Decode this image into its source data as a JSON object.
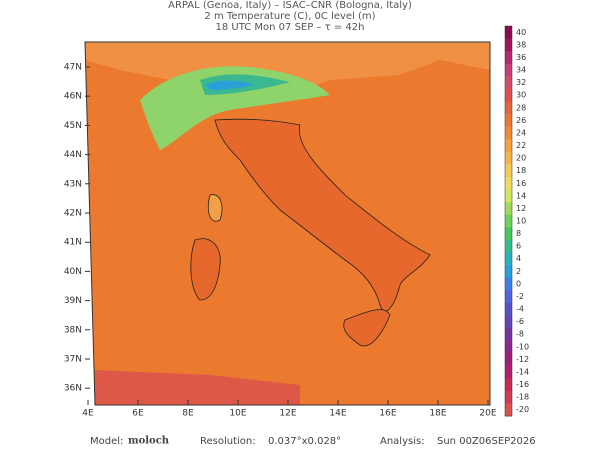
{
  "header": {
    "lines": [
      "ARPAL (Genoa, Italy)  –  ISAC–CNR (Bologna, Italy)",
      "2 m Temperature (C), 0C level (m)",
      "18 UTC Mon 07 SEP  –  τ = 42h"
    ]
  },
  "map": {
    "lat_labels": [
      "47N",
      "46N",
      "45N",
      "44N",
      "43N",
      "42N",
      "41N",
      "40N",
      "39N",
      "38N",
      "37N",
      "36N"
    ],
    "lon_labels": [
      "4E",
      "6E",
      "8E",
      "10E",
      "12E",
      "14E",
      "16E",
      "18E",
      "20E"
    ]
  },
  "colorbar": {
    "labels": [
      "40",
      "38",
      "36",
      "34",
      "32",
      "30",
      "28",
      "26",
      "24",
      "22",
      "20",
      "18",
      "16",
      "14",
      "12",
      "10",
      "8",
      "6",
      "4",
      "2",
      "0",
      "-2",
      "-4",
      "-6",
      "-8",
      "-10",
      "-12",
      "-14",
      "-16",
      "-18",
      "-20"
    ],
    "colors": [
      "#8b0a50",
      "#a0145a",
      "#b4286e",
      "#c83c78",
      "#d24b6e",
      "#dc5050",
      "#e6643c",
      "#eb7832",
      "#f08c32",
      "#f5a03c",
      "#f5b446",
      "#f5c850",
      "#f0dc5a",
      "#d2e65a",
      "#a0dc5a",
      "#6ed25a",
      "#46c85a",
      "#32be8c",
      "#28b4be",
      "#28a0dc",
      "#3c82e6",
      "#5064dc",
      "#5a50c8",
      "#6446b4",
      "#7832a0",
      "#8c288c",
      "#a01e78",
      "#b41e6e",
      "#c8285a",
      "#d23c50",
      "#dc5050"
    ]
  },
  "footer": {
    "model_label": "Model:",
    "model": "moloch",
    "resolution_label": "Resolution:",
    "resolution": "0.037°x0.028°",
    "analysis_label": "Analysis:",
    "analysis": "Sun 00Z06SEP2026"
  }
}
